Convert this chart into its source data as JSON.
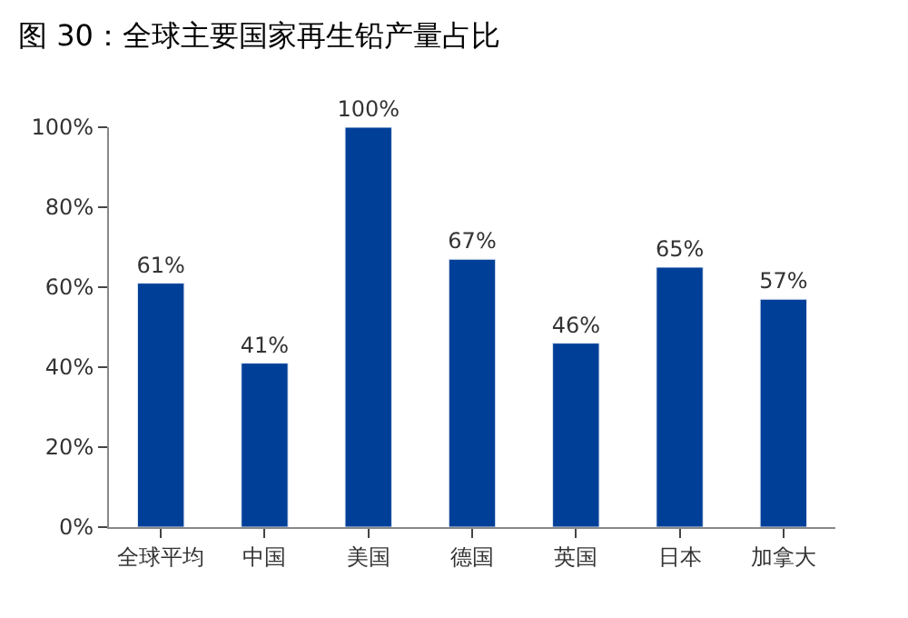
{
  "chart_data": {
    "type": "bar",
    "title": "图 30：全球主要国家再生铅产量占比",
    "categories": [
      "全球平均",
      "中国",
      "美国",
      "德国",
      "英国",
      "日本",
      "加拿大"
    ],
    "values": [
      61,
      41,
      100,
      67,
      46,
      65,
      57
    ],
    "value_labels": [
      "61%",
      "41%",
      "100%",
      "67%",
      "46%",
      "65%",
      "57%"
    ],
    "color": "#003f98",
    "ylim": [
      0,
      100
    ],
    "yticks": [
      {
        "value": 0,
        "label": "0%"
      },
      {
        "value": 20,
        "label": "20%"
      },
      {
        "value": 40,
        "label": "40%"
      },
      {
        "value": 60,
        "label": "60%"
      },
      {
        "value": 80,
        "label": "80%"
      },
      {
        "value": 100,
        "label": "100%"
      }
    ]
  }
}
